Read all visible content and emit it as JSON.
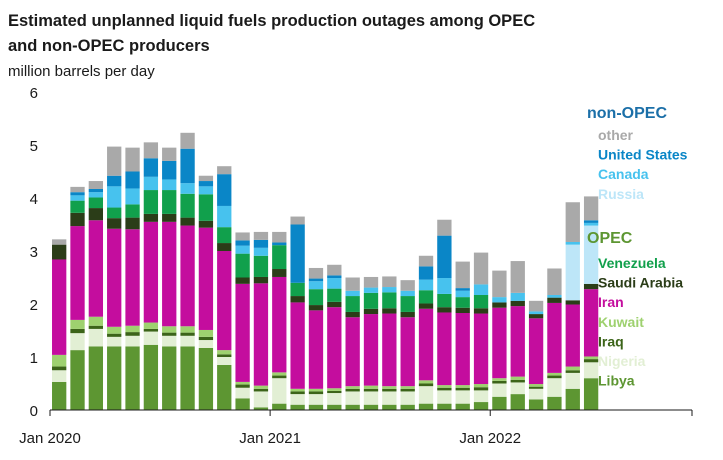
{
  "chart_data": {
    "type": "bar",
    "stacked": true,
    "title_lines": [
      "Estimated unplanned liquid fuels production outages among OPEC",
      "and non-OPEC producers"
    ],
    "subtitle": "million  barrels per day",
    "ylim": [
      0,
      6
    ],
    "yticks": [
      "0",
      "1",
      "2",
      "3",
      "4",
      "5",
      "6"
    ],
    "x_tick_labels": [
      {
        "label": "Jan 2020",
        "index": 0
      },
      {
        "label": "Jan 2021",
        "index": 12
      },
      {
        "label": "Jan 2022",
        "index": 24
      }
    ],
    "x_range": [
      -0.5,
      34.5
    ],
    "months": [
      "Jan 2020",
      "Feb 2020",
      "Mar 2020",
      "Apr 2020",
      "May 2020",
      "Jun 2020",
      "Jul 2020",
      "Aug 2020",
      "Sep 2020",
      "Oct 2020",
      "Nov 2020",
      "Dec 2020",
      "Jan 2021",
      "Feb 2021",
      "Mar 2021",
      "Apr 2021",
      "May 2021",
      "Jun 2021",
      "Jul 2021",
      "Aug 2021",
      "Sep 2021",
      "Oct 2021",
      "Nov 2021",
      "Dec 2021",
      "Jan 2022",
      "Feb 2022",
      "Mar 2022",
      "Apr 2022",
      "May 2022",
      "Jun 2022",
      "Jul 2022"
    ],
    "series": [
      {
        "name": "Libya",
        "group": "OPEC",
        "color": "#5d9632",
        "values": [
          0.53,
          1.13,
          1.2,
          1.2,
          1.2,
          1.23,
          1.2,
          1.2,
          1.17,
          0.85,
          0.22,
          0.05,
          0.12,
          0.1,
          0.1,
          0.1,
          0.1,
          0.1,
          0.1,
          0.1,
          0.12,
          0.12,
          0.12,
          0.15,
          0.25,
          0.3,
          0.2,
          0.25,
          0.4,
          0.6,
          0
        ]
      },
      {
        "name": "Nigeria",
        "group": "OPEC",
        "color": "#e2efd4",
        "values": [
          0.22,
          0.32,
          0.33,
          0.18,
          0.2,
          0.25,
          0.2,
          0.2,
          0.15,
          0.15,
          0.2,
          0.3,
          0.48,
          0.2,
          0.2,
          0.22,
          0.25,
          0.25,
          0.25,
          0.25,
          0.33,
          0.25,
          0.25,
          0.22,
          0.25,
          0.22,
          0.2,
          0.35,
          0.3,
          0.3,
          0
        ]
      },
      {
        "name": "Iraq",
        "group": "OPEC",
        "color": "#3c6419",
        "values": [
          0.07,
          0.08,
          0.06,
          0.06,
          0.07,
          0.05,
          0.06,
          0.06,
          0.06,
          0.05,
          0.06,
          0.05,
          0.05,
          0.05,
          0.05,
          0.04,
          0.05,
          0.05,
          0.05,
          0.05,
          0.05,
          0.05,
          0.05,
          0.06,
          0.05,
          0.05,
          0.04,
          0.05,
          0.05,
          0.06,
          0
        ]
      },
      {
        "name": "Kuwait",
        "group": "OPEC",
        "color": "#9ed16f",
        "values": [
          0.22,
          0.17,
          0.17,
          0.13,
          0.12,
          0.12,
          0.12,
          0.12,
          0.13,
          0.08,
          0.05,
          0.06,
          0.06,
          0.05,
          0.05,
          0.05,
          0.05,
          0.06,
          0.05,
          0.05,
          0.06,
          0.05,
          0.05,
          0.06,
          0.05,
          0.06,
          0.05,
          0.05,
          0.07,
          0.05,
          0
        ]
      },
      {
        "name": "Iran",
        "group": "OPEC",
        "color": "#c40d9e",
        "values": [
          1.8,
          1.77,
          1.82,
          1.85,
          1.82,
          1.9,
          1.97,
          1.9,
          1.93,
          1.87,
          1.85,
          1.93,
          1.8,
          1.63,
          1.48,
          1.53,
          1.3,
          1.35,
          1.37,
          1.3,
          1.35,
          1.37,
          1.36,
          1.33,
          1.33,
          1.33,
          1.24,
          1.32,
          1.17,
          1.27,
          0
        ]
      },
      {
        "name": "Saudi Arabia",
        "group": "OPEC",
        "color": "#2b3d18",
        "values": [
          0.28,
          0.25,
          0.23,
          0.2,
          0.22,
          0.15,
          0.15,
          0.15,
          0.13,
          0.15,
          0.12,
          0.12,
          0.15,
          0.12,
          0.1,
          0.1,
          0.1,
          0.1,
          0.1,
          0.1,
          0.1,
          0.1,
          0.1,
          0.1,
          0.1,
          0.1,
          0.08,
          0.1,
          0.08,
          0.1,
          0
        ]
      },
      {
        "name": "Venezuela",
        "group": "OPEC",
        "color": "#11a04c",
        "values": [
          0,
          0.23,
          0.2,
          0.2,
          0.25,
          0.45,
          0.45,
          0.45,
          0.5,
          0.3,
          0.45,
          0.4,
          0.45,
          0.25,
          0.3,
          0.25,
          0.3,
          0.3,
          0.3,
          0.3,
          0.25,
          0.25,
          0.2,
          0.25,
          0,
          0,
          0,
          0,
          0,
          0,
          0
        ]
      },
      {
        "name": "Russia",
        "group": "non-OPEC",
        "color": "#bde6f8",
        "values": [
          0,
          0,
          0,
          0,
          0,
          0,
          0,
          0,
          0,
          0,
          0,
          0,
          0,
          0,
          0,
          0,
          0,
          0,
          0,
          0,
          0,
          0,
          0,
          0,
          0,
          0,
          0,
          0,
          1.05,
          1.1,
          0
        ]
      },
      {
        "name": "Canada",
        "group": "non-OPEC",
        "color": "#47c2ee",
        "values": [
          0,
          0.1,
          0.1,
          0.4,
          0.3,
          0.25,
          0.2,
          0.2,
          0.15,
          0.4,
          0.15,
          0.15,
          0,
          0,
          0.15,
          0.2,
          0.1,
          0.1,
          0.1,
          0.1,
          0.2,
          0.3,
          0.12,
          0.2,
          0.1,
          0.15,
          0.05,
          0.05,
          0.05,
          0.05,
          0
        ]
      },
      {
        "name": "United States",
        "group": "non-OPEC",
        "color": "#0a86c7",
        "values": [
          0,
          0.06,
          0.06,
          0.2,
          0.32,
          0.35,
          0.35,
          0.65,
          0.1,
          0.6,
          0.1,
          0.15,
          0.05,
          1.1,
          0.05,
          0.05,
          0,
          0,
          0,
          0,
          0.25,
          0.8,
          0.05,
          0,
          0,
          0,
          0,
          0,
          0,
          0.05,
          0
        ]
      },
      {
        "name": "other",
        "group": "non-OPEC",
        "color": "#a9a9a9",
        "values": [
          0.1,
          0.1,
          0.15,
          0.55,
          0.45,
          0.3,
          0.25,
          0.3,
          0.1,
          0.15,
          0.15,
          0.15,
          0.2,
          0.15,
          0.2,
          0.2,
          0.25,
          0.2,
          0.2,
          0.2,
          0.2,
          0.3,
          0.5,
          0.6,
          0.5,
          0.6,
          0.2,
          0.5,
          0.75,
          0.45,
          0
        ]
      }
    ],
    "legend": {
      "groups": [
        {
          "title": "non-OPEC",
          "title_color": "#1b6fa8",
          "items": [
            {
              "label": "other",
              "color": "#a9a9a9"
            },
            {
              "label": "United States",
              "color": "#0a86c7"
            },
            {
              "label": "Canada",
              "color": "#47c2ee"
            },
            {
              "label": "Russia",
              "color": "#bde6f8"
            }
          ]
        },
        {
          "title": "OPEC",
          "title_color": "#5d9632",
          "items": [
            {
              "label": "Venezuela",
              "color": "#11a04c"
            },
            {
              "label": "Saudi Arabia",
              "color": "#2b3d18"
            },
            {
              "label": "Iran",
              "color": "#c40d9e"
            },
            {
              "label": "Kuwait",
              "color": "#9ed16f"
            },
            {
              "label": "Iraq",
              "color": "#3c6419"
            },
            {
              "label": "Nigeria",
              "color": "#e2efd4"
            },
            {
              "label": "Libya",
              "color": "#5d9632"
            }
          ]
        }
      ]
    }
  }
}
